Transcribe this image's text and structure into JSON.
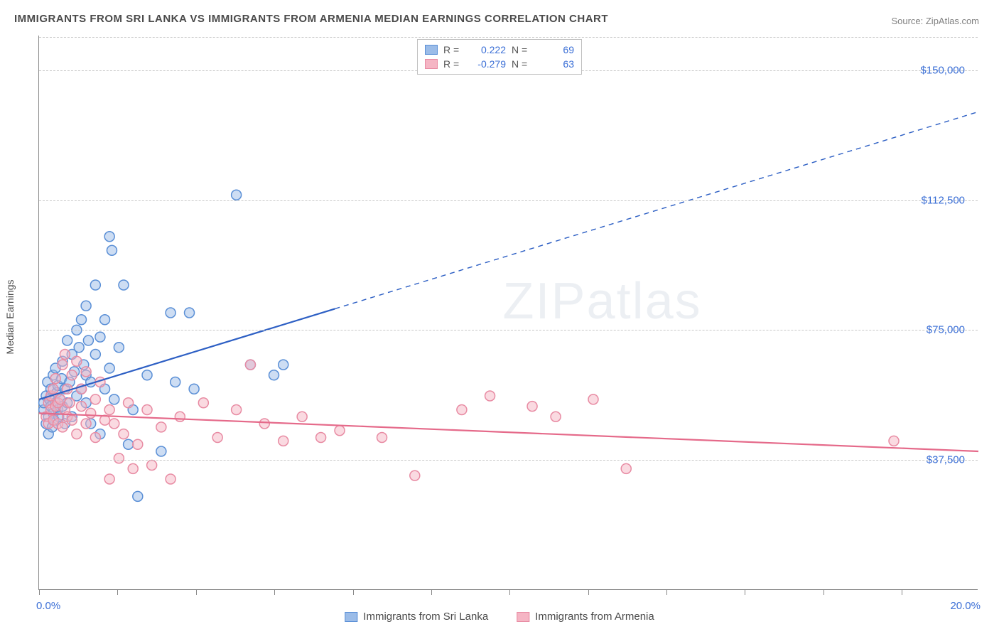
{
  "title": "IMMIGRANTS FROM SRI LANKA VS IMMIGRANTS FROM ARMENIA MEDIAN EARNINGS CORRELATION CHART",
  "source": "Source: ZipAtlas.com",
  "watermark": "ZIPatlas",
  "yaxis_title": "Median Earnings",
  "chart": {
    "type": "scatter",
    "xlim": [
      0,
      20
    ],
    "ylim": [
      0,
      160000
    ],
    "x_ticks": [
      0,
      1.67,
      3.34,
      5.01,
      6.68,
      8.35,
      10.02,
      11.69,
      13.36,
      15.03,
      16.7,
      18.37
    ],
    "y_gridlines": [
      37500,
      75000,
      112500,
      150000
    ],
    "y_tick_labels": [
      "$37,500",
      "$75,000",
      "$112,500",
      "$150,000"
    ],
    "x_min_label": "0.0%",
    "x_max_label": "20.0%",
    "background_color": "#ffffff",
    "grid_color": "#c8c8c8",
    "axis_color": "#888888",
    "marker_radius": 7,
    "marker_opacity": 0.5,
    "marker_stroke_width": 1.5,
    "line_width": 2.2
  },
  "series": [
    {
      "name": "Immigrants from Sri Lanka",
      "color_fill": "#9bbce8",
      "color_stroke": "#5a8fd6",
      "line_color": "#2d5fc4",
      "r_label": "R =",
      "r_value": "0.222",
      "n_label": "N =",
      "n_value": "69",
      "trend": {
        "x1": 0,
        "y1": 55000,
        "x2": 20,
        "y2": 138000,
        "solid_until_x": 6.3
      },
      "points": [
        [
          0.1,
          52000
        ],
        [
          0.1,
          54000
        ],
        [
          0.15,
          48000
        ],
        [
          0.15,
          56000
        ],
        [
          0.18,
          60000
        ],
        [
          0.2,
          45000
        ],
        [
          0.2,
          50000
        ],
        [
          0.22,
          55000
        ],
        [
          0.25,
          53000
        ],
        [
          0.25,
          58000
        ],
        [
          0.28,
          47000
        ],
        [
          0.3,
          51000
        ],
        [
          0.3,
          62000
        ],
        [
          0.32,
          49000
        ],
        [
          0.35,
          54000
        ],
        [
          0.35,
          64000
        ],
        [
          0.38,
          57000
        ],
        [
          0.4,
          52000
        ],
        [
          0.4,
          59000
        ],
        [
          0.42,
          50000
        ],
        [
          0.45,
          55000
        ],
        [
          0.48,
          61000
        ],
        [
          0.5,
          53000
        ],
        [
          0.5,
          66000
        ],
        [
          0.55,
          48000
        ],
        [
          0.55,
          58000
        ],
        [
          0.6,
          54000
        ],
        [
          0.6,
          72000
        ],
        [
          0.65,
          60000
        ],
        [
          0.7,
          68000
        ],
        [
          0.7,
          50000
        ],
        [
          0.75,
          63000
        ],
        [
          0.8,
          56000
        ],
        [
          0.8,
          75000
        ],
        [
          0.85,
          70000
        ],
        [
          0.9,
          58000
        ],
        [
          0.9,
          78000
        ],
        [
          0.95,
          65000
        ],
        [
          1.0,
          62000
        ],
        [
          1.0,
          54000
        ],
        [
          1.0,
          82000
        ],
        [
          1.05,
          72000
        ],
        [
          1.1,
          60000
        ],
        [
          1.1,
          48000
        ],
        [
          1.2,
          68000
        ],
        [
          1.2,
          88000
        ],
        [
          1.3,
          73000
        ],
        [
          1.3,
          45000
        ],
        [
          1.4,
          78000
        ],
        [
          1.4,
          58000
        ],
        [
          1.5,
          64000
        ],
        [
          1.5,
          102000
        ],
        [
          1.55,
          98000
        ],
        [
          1.6,
          55000
        ],
        [
          1.7,
          70000
        ],
        [
          1.8,
          88000
        ],
        [
          1.9,
          42000
        ],
        [
          2.0,
          52000
        ],
        [
          2.1,
          27000
        ],
        [
          2.3,
          62000
        ],
        [
          2.6,
          40000
        ],
        [
          2.8,
          80000
        ],
        [
          2.9,
          60000
        ],
        [
          3.2,
          80000
        ],
        [
          3.3,
          58000
        ],
        [
          4.2,
          114000
        ],
        [
          4.5,
          65000
        ],
        [
          5.0,
          62000
        ],
        [
          5.2,
          65000
        ]
      ]
    },
    {
      "name": "Immigrants from Armenia",
      "color_fill": "#f5b5c4",
      "color_stroke": "#e88ba3",
      "line_color": "#e56a8a",
      "r_label": "R =",
      "r_value": "-0.279",
      "n_label": "N =",
      "n_value": "63",
      "trend": {
        "x1": 0,
        "y1": 51000,
        "x2": 20,
        "y2": 40000,
        "solid_until_x": 20
      },
      "points": [
        [
          0.15,
          50000
        ],
        [
          0.2,
          54000
        ],
        [
          0.2,
          48000
        ],
        [
          0.25,
          52000
        ],
        [
          0.25,
          56000
        ],
        [
          0.3,
          49000
        ],
        [
          0.3,
          58000
        ],
        [
          0.35,
          53000
        ],
        [
          0.35,
          61000
        ],
        [
          0.4,
          54000
        ],
        [
          0.4,
          48000
        ],
        [
          0.45,
          55000
        ],
        [
          0.5,
          65000
        ],
        [
          0.5,
          47000
        ],
        [
          0.55,
          52000
        ],
        [
          0.55,
          68000
        ],
        [
          0.6,
          50000
        ],
        [
          0.6,
          58000
        ],
        [
          0.65,
          54000
        ],
        [
          0.7,
          62000
        ],
        [
          0.7,
          49000
        ],
        [
          0.8,
          66000
        ],
        [
          0.8,
          45000
        ],
        [
          0.9,
          53000
        ],
        [
          0.9,
          58000
        ],
        [
          1.0,
          63000
        ],
        [
          1.0,
          48000
        ],
        [
          1.1,
          51000
        ],
        [
          1.2,
          55000
        ],
        [
          1.2,
          44000
        ],
        [
          1.3,
          60000
        ],
        [
          1.4,
          49000
        ],
        [
          1.5,
          52000
        ],
        [
          1.5,
          32000
        ],
        [
          1.6,
          48000
        ],
        [
          1.7,
          38000
        ],
        [
          1.8,
          45000
        ],
        [
          1.9,
          54000
        ],
        [
          2.0,
          35000
        ],
        [
          2.1,
          42000
        ],
        [
          2.3,
          52000
        ],
        [
          2.4,
          36000
        ],
        [
          2.6,
          47000
        ],
        [
          2.8,
          32000
        ],
        [
          3.0,
          50000
        ],
        [
          3.5,
          54000
        ],
        [
          3.8,
          44000
        ],
        [
          4.2,
          52000
        ],
        [
          4.5,
          65000
        ],
        [
          4.8,
          48000
        ],
        [
          5.2,
          43000
        ],
        [
          5.6,
          50000
        ],
        [
          6.0,
          44000
        ],
        [
          6.4,
          46000
        ],
        [
          7.3,
          44000
        ],
        [
          8.0,
          33000
        ],
        [
          9.0,
          52000
        ],
        [
          9.6,
          56000
        ],
        [
          10.5,
          53000
        ],
        [
          11.0,
          50000
        ],
        [
          11.8,
          55000
        ],
        [
          12.5,
          35000
        ],
        [
          18.2,
          43000
        ]
      ]
    }
  ]
}
